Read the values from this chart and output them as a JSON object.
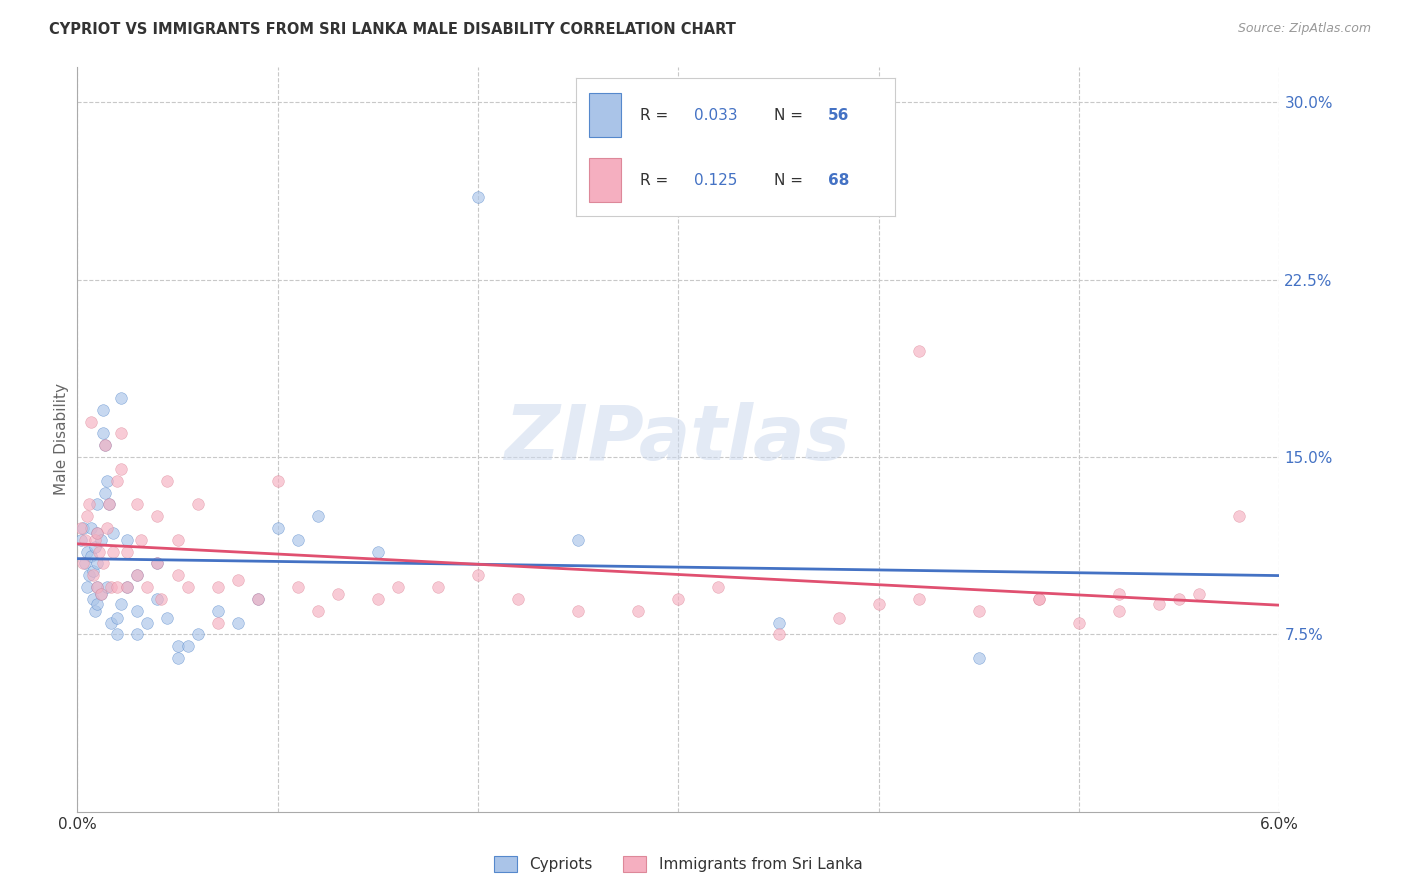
{
  "title": "CYPRIOT VS IMMIGRANTS FROM SRI LANKA MALE DISABILITY CORRELATION CHART",
  "source": "Source: ZipAtlas.com",
  "ylabel": "Male Disability",
  "xlim": [
    0.0,
    0.06
  ],
  "ylim": [
    0.0,
    0.315
  ],
  "xtick_positions": [
    0.0,
    0.01,
    0.02,
    0.03,
    0.04,
    0.05,
    0.06
  ],
  "xticklabels": [
    "0.0%",
    "",
    "",
    "",
    "",
    "",
    "6.0%"
  ],
  "yticks_right": [
    0.075,
    0.15,
    0.225,
    0.3
  ],
  "ytick_labels_right": [
    "7.5%",
    "15.0%",
    "22.5%",
    "30.0%"
  ],
  "background_color": "#ffffff",
  "grid_color": "#c8c8c8",
  "watermark": "ZIPatlas",
  "color_cypriot_fill": "#aac4e8",
  "color_cypriot_edge": "#5588cc",
  "color_srilanka_fill": "#f5afc0",
  "color_srilanka_edge": "#dd8899",
  "color_cypriot_line": "#4472c4",
  "color_srilanka_line": "#e05070",
  "scatter_alpha": 0.65,
  "scatter_size": 70,
  "cypriot_x": [
    0.0002,
    0.0003,
    0.0004,
    0.0005,
    0.0005,
    0.0006,
    0.0007,
    0.0007,
    0.0008,
    0.0008,
    0.0009,
    0.0009,
    0.001,
    0.001,
    0.001,
    0.001,
    0.001,
    0.0012,
    0.0012,
    0.0013,
    0.0013,
    0.0014,
    0.0014,
    0.0015,
    0.0015,
    0.0016,
    0.0017,
    0.0018,
    0.002,
    0.002,
    0.0022,
    0.0022,
    0.0025,
    0.0025,
    0.003,
    0.003,
    0.003,
    0.0035,
    0.004,
    0.004,
    0.0045,
    0.005,
    0.005,
    0.0055,
    0.006,
    0.007,
    0.008,
    0.009,
    0.01,
    0.011,
    0.012,
    0.015,
    0.02,
    0.025,
    0.035,
    0.045
  ],
  "cypriot_y": [
    0.115,
    0.12,
    0.105,
    0.11,
    0.095,
    0.1,
    0.108,
    0.12,
    0.09,
    0.102,
    0.085,
    0.112,
    0.13,
    0.095,
    0.118,
    0.105,
    0.088,
    0.115,
    0.092,
    0.16,
    0.17,
    0.155,
    0.135,
    0.14,
    0.095,
    0.13,
    0.08,
    0.118,
    0.075,
    0.082,
    0.088,
    0.175,
    0.115,
    0.095,
    0.1,
    0.075,
    0.085,
    0.08,
    0.09,
    0.105,
    0.082,
    0.07,
    0.065,
    0.07,
    0.075,
    0.085,
    0.08,
    0.09,
    0.12,
    0.115,
    0.125,
    0.11,
    0.26,
    0.115,
    0.08,
    0.065
  ],
  "srilanka_x": [
    0.0002,
    0.0003,
    0.0004,
    0.0005,
    0.0006,
    0.0007,
    0.0008,
    0.0009,
    0.001,
    0.001,
    0.0011,
    0.0012,
    0.0013,
    0.0014,
    0.0015,
    0.0016,
    0.0017,
    0.0018,
    0.002,
    0.002,
    0.0022,
    0.0022,
    0.0025,
    0.0025,
    0.003,
    0.003,
    0.0032,
    0.0035,
    0.004,
    0.004,
    0.0042,
    0.0045,
    0.005,
    0.005,
    0.0055,
    0.006,
    0.007,
    0.007,
    0.008,
    0.009,
    0.01,
    0.011,
    0.012,
    0.013,
    0.015,
    0.016,
    0.018,
    0.02,
    0.022,
    0.025,
    0.028,
    0.03,
    0.032,
    0.035,
    0.038,
    0.04,
    0.042,
    0.045,
    0.048,
    0.05,
    0.052,
    0.054,
    0.056,
    0.058,
    0.042,
    0.048,
    0.052,
    0.055
  ],
  "srilanka_y": [
    0.12,
    0.105,
    0.115,
    0.125,
    0.13,
    0.165,
    0.1,
    0.115,
    0.095,
    0.118,
    0.11,
    0.092,
    0.105,
    0.155,
    0.12,
    0.13,
    0.095,
    0.11,
    0.14,
    0.095,
    0.16,
    0.145,
    0.095,
    0.11,
    0.13,
    0.1,
    0.115,
    0.095,
    0.105,
    0.125,
    0.09,
    0.14,
    0.1,
    0.115,
    0.095,
    0.13,
    0.095,
    0.08,
    0.098,
    0.09,
    0.14,
    0.095,
    0.085,
    0.092,
    0.09,
    0.095,
    0.095,
    0.1,
    0.09,
    0.085,
    0.085,
    0.09,
    0.095,
    0.075,
    0.082,
    0.088,
    0.09,
    0.085,
    0.09,
    0.08,
    0.092,
    0.088,
    0.092,
    0.125,
    0.195,
    0.09,
    0.085,
    0.09
  ],
  "legend_text1": "R = 0.033   N = 56",
  "legend_text2": "R = 0.125   N = 68",
  "legend_label1": "Cypriots",
  "legend_label2": "Immigrants from Sri Lanka"
}
